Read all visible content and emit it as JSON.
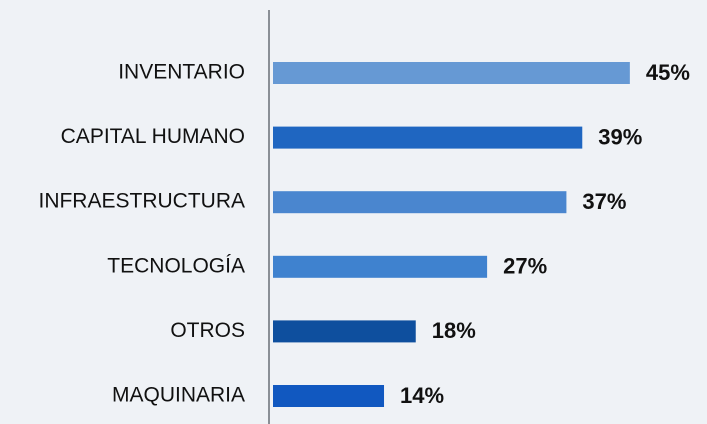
{
  "chart_data": {
    "type": "bar",
    "orientation": "horizontal",
    "categories": [
      "INVENTARIO",
      "CAPITAL HUMANO",
      "INFRAESTRUCTURA",
      "TECNOLOGÍA",
      "OTROS",
      "MAQUINARIA"
    ],
    "values": [
      45,
      39,
      37,
      27,
      18,
      14
    ],
    "value_labels": [
      "45%",
      "39%",
      "37%",
      "27%",
      "18%",
      "14%"
    ],
    "colors": [
      "#6699d4",
      "#1f66c1",
      "#4a86cf",
      "#3f82cf",
      "#0e4f9e",
      "#1158c0"
    ]
  }
}
